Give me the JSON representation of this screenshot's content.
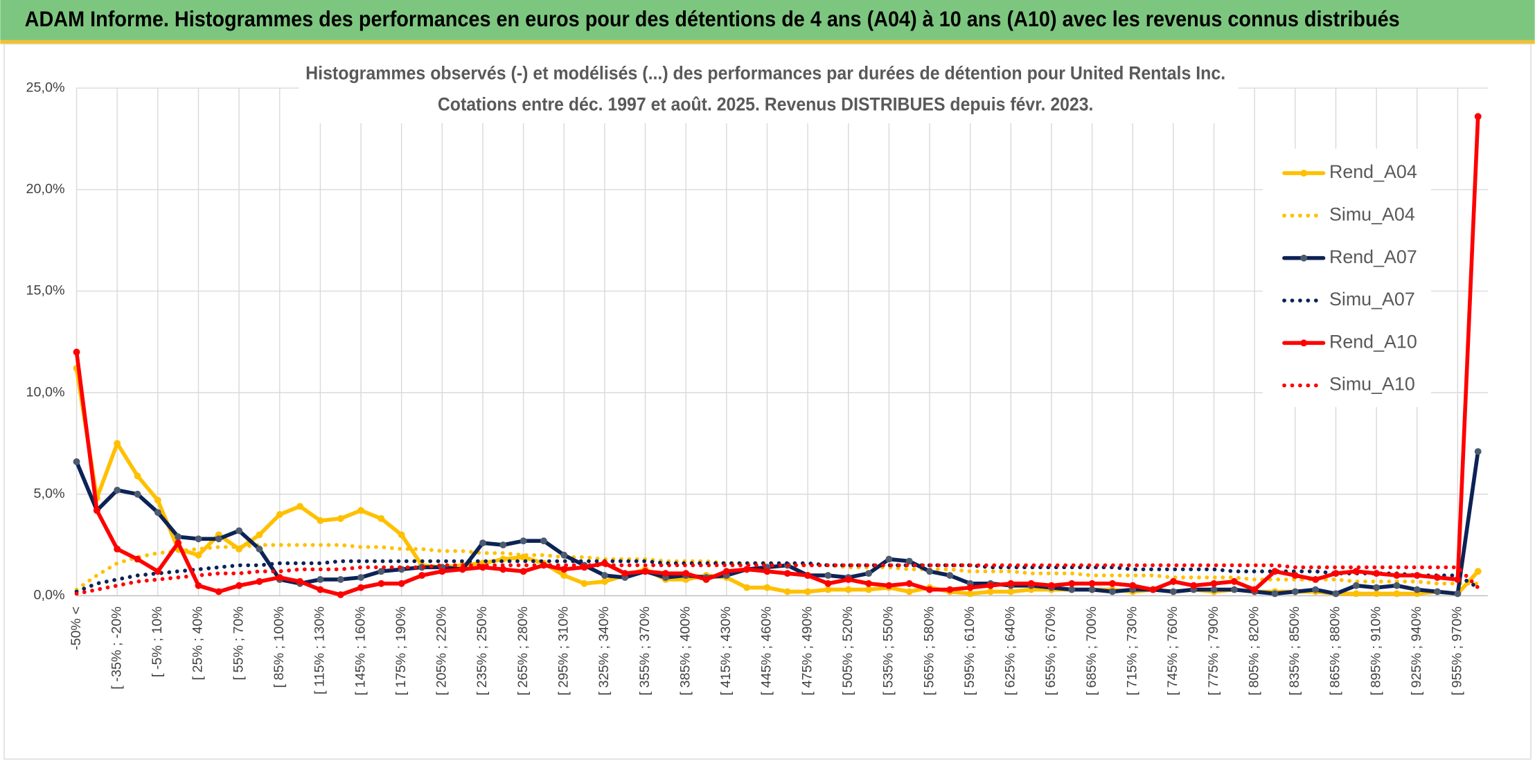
{
  "chart_data": {
    "type": "line",
    "header": "ADAM Informe. Histogrammes des performances en euros pour des détentions de 4 ans (A04) à 10 ans (A10) avec les revenus connus distribués",
    "title": "Histogrammes observés (-) et modélisés (...) des performances par durées de détention pour United Rentals Inc.",
    "subtitle": "Cotations entre déc. 1997 et août. 2025. Revenus DISTRIBUES depuis févr. 2023.",
    "categories": [
      "-50% <",
      null,
      "[ -35% ; -20%",
      null,
      "[ -5% ; 10%",
      null,
      "[ 25% ; 40%",
      null,
      "[ 55% ; 70%",
      null,
      "[ 85% ; 100%",
      null,
      "[ 115% ; 130%",
      null,
      "[ 145% ; 160%",
      null,
      "[ 175% ; 190%",
      null,
      "[ 205% ; 220%",
      null,
      "[ 235% ; 250%",
      null,
      "[ 265% ; 280%",
      null,
      "[ 295% ; 310%",
      null,
      "[ 325% ; 340%",
      null,
      "[ 355% ; 370%",
      null,
      "[ 385% ; 400%",
      null,
      "[ 415% ; 430%",
      null,
      "[ 445% ; 460%",
      null,
      "[ 475% ; 490%",
      null,
      "[ 505% ; 520%",
      null,
      "[ 535% ; 550%",
      null,
      "[ 565% ; 580%",
      null,
      "[ 595% ; 610%",
      null,
      "[ 625% ; 640%",
      null,
      "[ 655% ; 670%",
      null,
      "[ 685% ; 700%",
      null,
      "[ 715% ; 730%",
      null,
      "[ 745% ; 760%",
      null,
      "[ 775% ; 790%",
      null,
      "[ 805% ; 820%",
      null,
      "[ 835% ; 850%",
      null,
      "[ 865% ; 880%",
      null,
      "[ 895% ; 910%",
      null,
      "[ 925% ; 940%",
      null,
      "[ 955% ; 970%",
      null
    ],
    "series": [
      {
        "name": "Rend_A04",
        "color": "#ffc000",
        "line_style": "solid",
        "marker_color": "#ffc000",
        "values": [
          11.2,
          4.8,
          7.5,
          5.9,
          4.7,
          2.3,
          2.0,
          3.0,
          2.3,
          3.0,
          4.0,
          4.4,
          3.7,
          3.8,
          4.2,
          3.8,
          3.0,
          1.5,
          1.4,
          1.5,
          1.6,
          1.8,
          1.9,
          1.6,
          1.0,
          0.6,
          0.7,
          1.0,
          1.3,
          0.8,
          0.8,
          1.0,
          0.9,
          0.4,
          0.4,
          0.2,
          0.2,
          0.3,
          0.3,
          0.3,
          0.4,
          0.2,
          0.4,
          0.2,
          0.1,
          0.2,
          0.2,
          0.3,
          0.3,
          0.3,
          0.3,
          0.3,
          0.2,
          0.3,
          0.2,
          0.3,
          0.2,
          0.3,
          0.2,
          0.2,
          0.2,
          0.2,
          0.1,
          0.1,
          0.1,
          0.1,
          0.1,
          0.2,
          0.1,
          1.2
        ]
      },
      {
        "name": "Simu_A04",
        "color": "#ffc000",
        "line_style": "dotted",
        "values": [
          0.3,
          1.0,
          1.6,
          1.9,
          2.1,
          2.2,
          2.3,
          2.4,
          2.4,
          2.5,
          2.5,
          2.5,
          2.5,
          2.5,
          2.4,
          2.4,
          2.3,
          2.3,
          2.2,
          2.2,
          2.1,
          2.1,
          2.0,
          2.0,
          1.9,
          1.9,
          1.8,
          1.8,
          1.8,
          1.7,
          1.7,
          1.7,
          1.6,
          1.6,
          1.6,
          1.5,
          1.5,
          1.5,
          1.4,
          1.4,
          1.4,
          1.3,
          1.3,
          1.3,
          1.2,
          1.2,
          1.2,
          1.1,
          1.1,
          1.1,
          1.0,
          1.0,
          1.0,
          1.0,
          0.9,
          0.9,
          0.9,
          0.9,
          0.8,
          0.8,
          0.8,
          0.8,
          0.8,
          0.7,
          0.7,
          0.7,
          0.7,
          0.6,
          0.6,
          0.6
        ]
      },
      {
        "name": "Rend_A07",
        "color": "#0d2356",
        "line_style": "solid",
        "marker_color": "#4d5b70",
        "values": [
          6.6,
          4.2,
          5.2,
          5.0,
          4.1,
          2.9,
          2.8,
          2.8,
          3.2,
          2.3,
          0.8,
          0.6,
          0.8,
          0.8,
          0.9,
          1.2,
          1.3,
          1.4,
          1.4,
          1.3,
          2.6,
          2.5,
          2.7,
          2.7,
          2.0,
          1.5,
          1.0,
          0.9,
          1.2,
          0.9,
          1.0,
          0.9,
          1.0,
          1.3,
          1.4,
          1.5,
          1.0,
          1.0,
          0.9,
          1.1,
          1.8,
          1.7,
          1.2,
          1.0,
          0.6,
          0.6,
          0.5,
          0.5,
          0.4,
          0.3,
          0.3,
          0.2,
          0.3,
          0.3,
          0.2,
          0.3,
          0.3,
          0.3,
          0.2,
          0.1,
          0.2,
          0.3,
          0.1,
          0.5,
          0.4,
          0.5,
          0.3,
          0.2,
          0.1,
          7.1
        ]
      },
      {
        "name": "Simu_A07",
        "color": "#0d2356",
        "line_style": "dotted",
        "values": [
          0.2,
          0.6,
          0.8,
          1.0,
          1.1,
          1.2,
          1.3,
          1.4,
          1.5,
          1.5,
          1.6,
          1.6,
          1.6,
          1.7,
          1.7,
          1.7,
          1.7,
          1.7,
          1.7,
          1.7,
          1.7,
          1.7,
          1.7,
          1.7,
          1.7,
          1.7,
          1.7,
          1.7,
          1.7,
          1.6,
          1.6,
          1.6,
          1.6,
          1.6,
          1.6,
          1.6,
          1.6,
          1.5,
          1.5,
          1.5,
          1.5,
          1.5,
          1.5,
          1.5,
          1.5,
          1.4,
          1.4,
          1.4,
          1.4,
          1.4,
          1.4,
          1.4,
          1.3,
          1.3,
          1.3,
          1.3,
          1.3,
          1.2,
          1.2,
          1.2,
          1.2,
          1.2,
          1.1,
          1.1,
          1.1,
          1.1,
          1.0,
          1.0,
          1.0,
          0.4
        ]
      },
      {
        "name": "Rend_A10",
        "color": "#ff0000",
        "line_style": "solid",
        "marker_color": "#ff0000",
        "values": [
          12.0,
          4.2,
          2.3,
          1.8,
          1.2,
          2.6,
          0.5,
          0.2,
          0.5,
          0.7,
          0.9,
          0.7,
          0.3,
          0.05,
          0.4,
          0.6,
          0.6,
          1.0,
          1.2,
          1.3,
          1.4,
          1.3,
          1.2,
          1.5,
          1.3,
          1.4,
          1.6,
          1.1,
          1.2,
          1.1,
          1.1,
          0.8,
          1.2,
          1.3,
          1.2,
          1.1,
          1.0,
          0.6,
          0.8,
          0.6,
          0.5,
          0.6,
          0.3,
          0.3,
          0.4,
          0.5,
          0.6,
          0.6,
          0.5,
          0.6,
          0.6,
          0.6,
          0.5,
          0.3,
          0.7,
          0.5,
          0.6,
          0.7,
          0.3,
          1.2,
          1.0,
          0.8,
          1.1,
          1.2,
          1.1,
          1.0,
          1.0,
          0.9,
          0.8,
          23.6
        ]
      },
      {
        "name": "Simu_A10",
        "color": "#ff0000",
        "line_style": "dotted",
        "values": [
          0.1,
          0.3,
          0.5,
          0.7,
          0.8,
          0.9,
          1.0,
          1.1,
          1.1,
          1.2,
          1.2,
          1.3,
          1.3,
          1.3,
          1.4,
          1.4,
          1.4,
          1.4,
          1.5,
          1.5,
          1.5,
          1.5,
          1.5,
          1.5,
          1.5,
          1.5,
          1.5,
          1.5,
          1.5,
          1.5,
          1.5,
          1.5,
          1.5,
          1.5,
          1.5,
          1.5,
          1.5,
          1.5,
          1.5,
          1.5,
          1.5,
          1.5,
          1.5,
          1.5,
          1.5,
          1.5,
          1.5,
          1.5,
          1.5,
          1.5,
          1.5,
          1.5,
          1.5,
          1.5,
          1.5,
          1.5,
          1.5,
          1.5,
          1.5,
          1.5,
          1.4,
          1.4,
          1.4,
          1.4,
          1.4,
          1.4,
          1.4,
          1.4,
          1.4,
          0.4
        ]
      }
    ],
    "ylim": [
      0,
      25
    ],
    "yticks": [
      {
        "value": 0,
        "label": "0,0%"
      },
      {
        "value": 5,
        "label": "5,0%"
      },
      {
        "value": 10,
        "label": "10,0%"
      },
      {
        "value": 15,
        "label": "15,0%"
      },
      {
        "value": 20,
        "label": "20,0%"
      },
      {
        "value": 25,
        "label": "25,0%"
      }
    ],
    "grid": true,
    "legend": "right",
    "header_color": "#7dc67f"
  }
}
